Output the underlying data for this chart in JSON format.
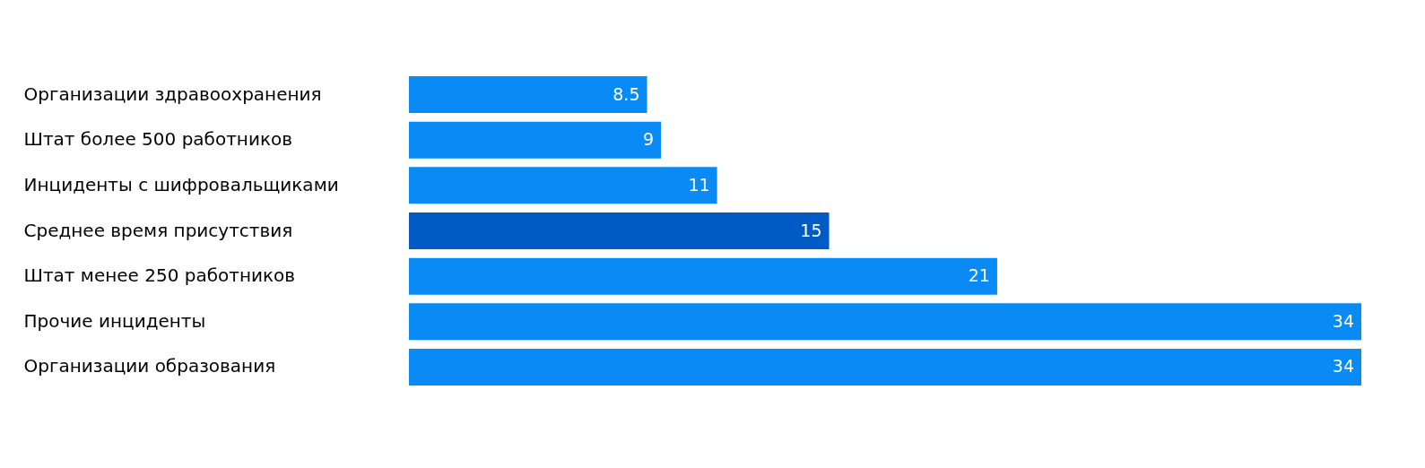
{
  "chart_data": {
    "type": "bar",
    "orientation": "horizontal",
    "data_labels": true,
    "categories": [
      "Организации здравоохранения",
      "Штат более 500 работников",
      "Инциденты с шифровальщиками",
      "Среднее время присутствия",
      "Штат менее 250 работников",
      "Прочие инциденты",
      "Организации образования"
    ],
    "values": [
      8.5,
      9,
      11,
      15,
      21,
      34,
      34
    ],
    "colors": [
      "#0a8af5",
      "#0a8af5",
      "#0a8af5",
      "#005bc5",
      "#0a8af5",
      "#0a8af5",
      "#0a8af5"
    ]
  }
}
